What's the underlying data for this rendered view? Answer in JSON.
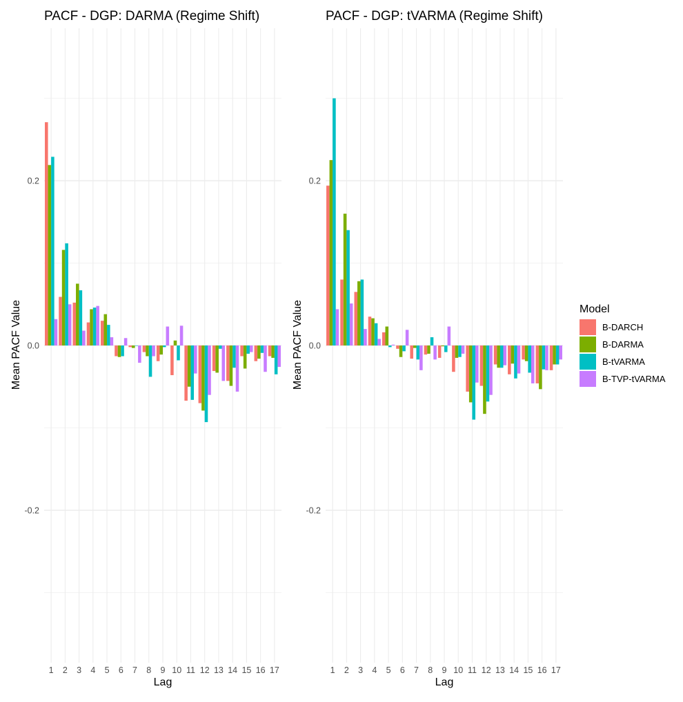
{
  "chart_data": [
    {
      "type": "bar",
      "title": "PACF - DGP: DARMA (Regime Shift)",
      "xlabel": "Lag",
      "ylabel": "Mean PACF Value",
      "ylim": [
        -0.385,
        0.385
      ],
      "yticks": [
        {
          "value": -0.2,
          "label": "-0.2"
        },
        {
          "value": 0.0,
          "label": "0.0"
        },
        {
          "value": 0.2,
          "label": "0.2"
        }
      ],
      "grid": true,
      "categories": [
        "1",
        "2",
        "3",
        "4",
        "5",
        "6",
        "7",
        "8",
        "9",
        "10",
        "11",
        "12",
        "13",
        "14",
        "15",
        "16",
        "17"
      ],
      "series": [
        {
          "name": "B-DARCH",
          "values": [
            0.271,
            0.059,
            0.052,
            0.028,
            0.03,
            -0.013,
            -0.002,
            -0.008,
            -0.019,
            -0.036,
            -0.067,
            -0.07,
            -0.031,
            -0.043,
            -0.013,
            -0.019,
            -0.013
          ]
        },
        {
          "name": "B-DARMA",
          "values": [
            0.219,
            0.116,
            0.075,
            0.044,
            0.038,
            -0.014,
            -0.003,
            -0.013,
            -0.011,
            0.006,
            -0.05,
            -0.079,
            -0.033,
            -0.049,
            -0.028,
            -0.016,
            -0.015
          ]
        },
        {
          "name": "B-tVARMA",
          "values": [
            0.229,
            0.124,
            0.067,
            0.046,
            0.025,
            -0.013,
            0.0,
            -0.038,
            -0.002,
            -0.018,
            -0.066,
            -0.093,
            -0.004,
            -0.027,
            -0.01,
            -0.009,
            -0.035
          ]
        },
        {
          "name": "B-TVP-tVARMA",
          "values": [
            0.032,
            0.05,
            0.018,
            0.048,
            0.01,
            0.009,
            -0.021,
            -0.013,
            0.023,
            0.024,
            -0.034,
            -0.06,
            -0.043,
            -0.056,
            -0.008,
            -0.032,
            -0.026
          ]
        }
      ]
    },
    {
      "type": "bar",
      "title": "PACF - DGP: tVARMA (Regime Shift)",
      "xlabel": "Lag",
      "ylabel": "Mean PACF Value",
      "ylim": [
        -0.385,
        0.385
      ],
      "yticks": [
        {
          "value": -0.2,
          "label": "-0.2"
        },
        {
          "value": 0.0,
          "label": "0.0"
        },
        {
          "value": 0.2,
          "label": "0.2"
        }
      ],
      "grid": true,
      "categories": [
        "1",
        "2",
        "3",
        "4",
        "5",
        "6",
        "7",
        "8",
        "9",
        "10",
        "11",
        "12",
        "13",
        "14",
        "15",
        "16",
        "17"
      ],
      "series": [
        {
          "name": "B-DARCH",
          "values": [
            0.194,
            0.08,
            0.065,
            0.035,
            0.016,
            -0.004,
            -0.016,
            -0.011,
            -0.015,
            -0.032,
            -0.056,
            -0.049,
            -0.023,
            -0.035,
            -0.017,
            -0.046,
            -0.03
          ]
        },
        {
          "name": "B-DARMA",
          "values": [
            0.225,
            0.16,
            0.078,
            0.033,
            0.023,
            -0.014,
            -0.003,
            -0.01,
            -0.001,
            -0.015,
            -0.069,
            -0.083,
            -0.027,
            -0.022,
            -0.019,
            -0.053,
            -0.023
          ]
        },
        {
          "name": "B-tVARMA",
          "values": [
            0.3,
            0.14,
            0.08,
            0.027,
            -0.002,
            -0.007,
            -0.017,
            0.01,
            -0.008,
            -0.014,
            -0.09,
            -0.068,
            -0.027,
            -0.04,
            -0.033,
            -0.029,
            -0.023
          ]
        },
        {
          "name": "B-TVP-tVARMA",
          "values": [
            0.044,
            0.051,
            0.02,
            0.008,
            0.001,
            0.019,
            -0.03,
            -0.017,
            0.023,
            -0.01,
            -0.045,
            -0.06,
            -0.024,
            -0.034,
            -0.046,
            -0.03,
            -0.017
          ]
        }
      ]
    }
  ],
  "legend": {
    "title": "Model",
    "items": [
      {
        "label": "B-DARCH",
        "color": "#F8766D"
      },
      {
        "label": "B-DARMA",
        "color": "#7CAE00"
      },
      {
        "label": "B-tVARMA",
        "color": "#00BFC4"
      },
      {
        "label": "B-TVP-tVARMA",
        "color": "#C77CFF"
      }
    ]
  }
}
